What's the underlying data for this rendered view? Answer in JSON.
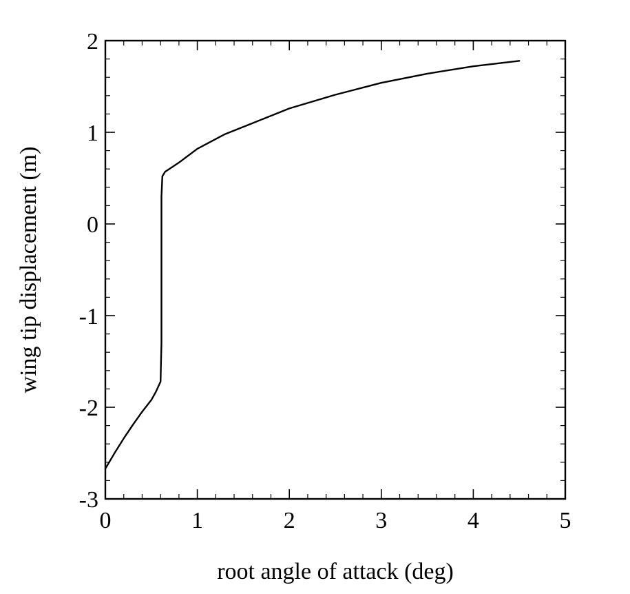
{
  "chart_data": {
    "type": "line",
    "title": "",
    "xlabel": "root angle of attack (deg)",
    "ylabel": "wing tip displacement (m)",
    "xlim": [
      0,
      5
    ],
    "ylim": [
      -3,
      2
    ],
    "xticks": [
      0,
      1,
      2,
      3,
      4,
      5
    ],
    "yticks": [
      -3,
      -2,
      -1,
      0,
      1,
      2
    ],
    "xtick_labels": [
      "0",
      "1",
      "2",
      "3",
      "4",
      "5"
    ],
    "ytick_labels": [
      "-3",
      "-2",
      "-1",
      "0",
      "1",
      "2"
    ],
    "minor_ticks_per_major": 5,
    "grid": false,
    "legend": "none",
    "colors": {
      "line": "#000000",
      "axes": "#000000",
      "background": "#ffffff"
    },
    "series": [
      {
        "x": [
          0.0,
          0.1,
          0.2,
          0.3,
          0.4,
          0.5,
          0.55,
          0.6,
          0.61,
          0.61,
          0.61,
          0.62,
          0.65,
          0.8,
          1.0,
          1.3,
          1.6,
          2.0,
          2.5,
          3.0,
          3.5,
          4.0,
          4.5
        ],
        "y": [
          -2.67,
          -2.5,
          -2.34,
          -2.19,
          -2.05,
          -1.92,
          -1.83,
          -1.72,
          -1.3,
          -0.3,
          0.3,
          0.52,
          0.57,
          0.67,
          0.82,
          0.98,
          1.1,
          1.26,
          1.41,
          1.54,
          1.64,
          1.72,
          1.78
        ]
      }
    ]
  }
}
